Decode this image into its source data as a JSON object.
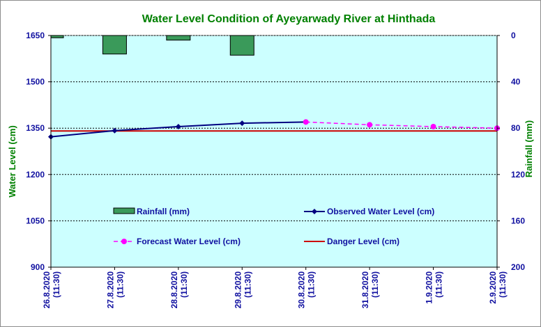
{
  "chart_data": {
    "type": "line",
    "title": "Water Level Condition of Ayeyarwady River at Hinthada",
    "ylabel": "Water Level (cm)",
    "y2label": "Rainfall (mm)",
    "categories": [
      [
        "26.8.2020",
        "(11:30)"
      ],
      [
        "27.8.2020",
        "(11:30)"
      ],
      [
        "28.8.2020",
        "(11:30)"
      ],
      [
        "29.8.2020",
        "(11:30)"
      ],
      [
        "30.8.2020",
        "(11:30)"
      ],
      [
        "31.8.2020",
        "(11:30)"
      ],
      [
        "1.9.2020",
        "(11:30)"
      ],
      [
        "2.9.2020",
        "(11:30)"
      ]
    ],
    "ylim": [
      900,
      1650
    ],
    "yticks": [
      900,
      1050,
      1200,
      1350,
      1500,
      1650
    ],
    "y2lim": [
      0,
      200
    ],
    "y2ticks": [
      0,
      40,
      80,
      120,
      160,
      200
    ],
    "y2_inverted": true,
    "grid": true,
    "series": [
      {
        "name": "Rainfall (mm)",
        "kind": "bar",
        "axis": "right",
        "color": "#3a9a5a",
        "values": [
          2,
          16,
          4,
          17,
          null,
          null,
          null,
          null
        ]
      },
      {
        "name": "Observed Water Level (cm)",
        "kind": "line",
        "axis": "left",
        "color": "#000080",
        "marker": "diamond",
        "values": [
          1322,
          1342,
          1355,
          1366,
          1370,
          null,
          null,
          null
        ]
      },
      {
        "name": "Forecast Water Level (cm)",
        "kind": "line-dashed",
        "axis": "left",
        "color": "#ff00ff",
        "marker": "circle",
        "values": [
          null,
          null,
          null,
          null,
          1370,
          1361,
          1355,
          1350
        ]
      },
      {
        "name": "Danger Level (cm)",
        "kind": "hline",
        "axis": "left",
        "color": "#cc0000",
        "values": [
          1341,
          1341,
          1341,
          1341,
          1341,
          1341,
          1341,
          1341
        ]
      }
    ],
    "legend_position": "inside-lower"
  }
}
